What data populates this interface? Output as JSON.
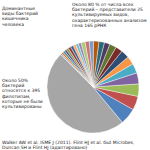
{
  "chart_data": {
    "type": "pie",
    "annotations": [
      "Около 80 % от числа всех бактерий – представители 25 культивируемых видов, охарактеризованных анализом гена 16S рРНК",
      "Доминантные виды бактерий кишечника человека",
      "Около 50% бактерий относятся к 395 филотипам, которые не были культивированы",
      "Walker AW et al. ISME J (2011). Flint HJ et al. Gut Microbes, Duncan SH и Flint HJ (адаптировано)"
    ],
    "values": [
      50,
      6,
      5,
      4.5,
      4,
      3.5,
      3,
      3,
      2.5,
      2.5,
      2,
      2,
      2,
      1.5,
      1.5,
      1.5,
      1,
      1,
      1,
      1,
      1,
      0.8,
      0.8,
      0.7,
      0.7,
      0.5
    ],
    "colors": [
      "#a6a6a6",
      "#4f81bd",
      "#c0504d",
      "#9bbb59",
      "#8064a2",
      "#4bacc6",
      "#f79646",
      "#2c4d75",
      "#772c2a",
      "#5f7530",
      "#4d3b62",
      "#276a7c",
      "#b65708",
      "#729aca",
      "#cd7371",
      "#afc97a",
      "#9983b5",
      "#6fbdd1",
      "#f9ab6b",
      "#3a6599",
      "#9c3a38",
      "#7c9a3f",
      "#664e82",
      "#338ca3",
      "#ee7b1a",
      "#95b3d7"
    ]
  }
}
